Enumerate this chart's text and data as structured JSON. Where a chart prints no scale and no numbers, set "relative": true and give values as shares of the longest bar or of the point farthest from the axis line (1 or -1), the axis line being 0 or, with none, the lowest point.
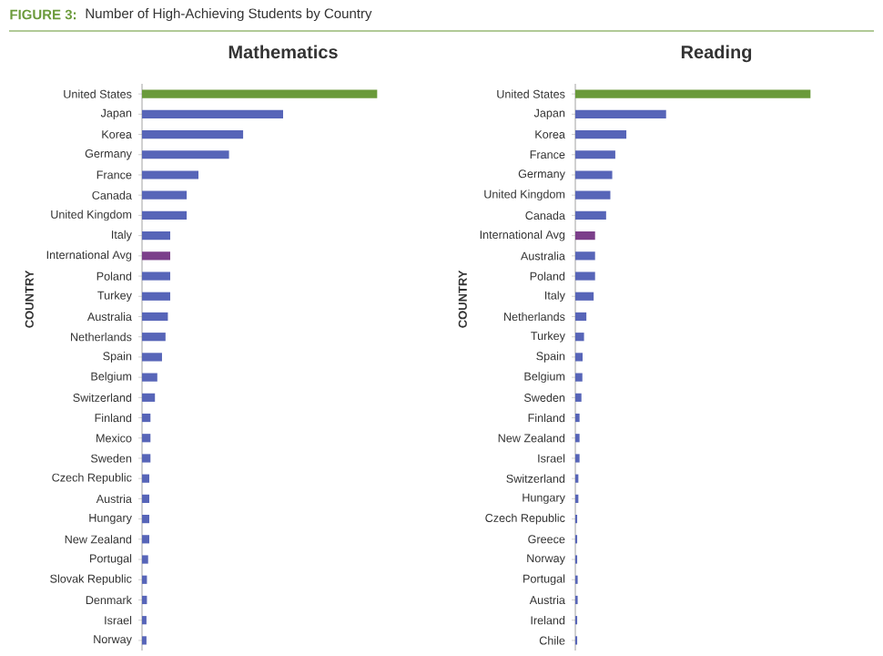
{
  "chart_data": [
    {
      "type": "bar",
      "orientation": "horizontal",
      "relative": true,
      "title": "Mathematics",
      "ylabel": "COUNTRY",
      "annotations": [
        "FIGURE 3:",
        "Number of High-Achieving Students by Country"
      ],
      "categories": [
        "United States",
        "Japan",
        "Korea",
        "Germany",
        "France",
        "Canada",
        "United Kingdom",
        "Italy",
        "International Avg",
        "Poland",
        "Turkey",
        "Australia",
        "Netherlands",
        "Spain",
        "Belgium",
        "Switzerland",
        "Finland",
        "Mexico",
        "Sweden",
        "Czech Republic",
        "Austria",
        "Hungary",
        "New Zealand",
        "Portugal",
        "Slovak Republic",
        "Denmark",
        "Israel",
        "Norway"
      ],
      "values": [
        1,
        0.6,
        0.43,
        0.37,
        0.24,
        0.19,
        0.19,
        0.12,
        0.12,
        0.12,
        0.12,
        0.11,
        0.1,
        0.085,
        0.065,
        0.055,
        0.036,
        0.036,
        0.036,
        0.031,
        0.031,
        0.031,
        0.031,
        0.026,
        0.021,
        0.021,
        0.019,
        0.019
      ],
      "colors": [
        "#6a9a3a",
        "#5765b8",
        "#5765b8",
        "#5765b8",
        "#5765b8",
        "#5765b8",
        "#5765b8",
        "#5765b8",
        "#7b3f8a",
        "#5765b8",
        "#5765b8",
        "#5765b8",
        "#5765b8",
        "#5765b8",
        "#5765b8",
        "#5765b8",
        "#5765b8",
        "#5765b8",
        "#5765b8",
        "#5765b8",
        "#5765b8",
        "#5765b8",
        "#5765b8",
        "#5765b8",
        "#5765b8",
        "#5765b8",
        "#5765b8",
        "#5765b8"
      ]
    },
    {
      "type": "bar",
      "orientation": "horizontal",
      "relative": true,
      "title": "Reading",
      "ylabel": "COUNTRY",
      "categories": [
        "United States",
        "Japan",
        "Korea",
        "France",
        "Germany",
        "United Kingdom",
        "Canada",
        "International Avg",
        "Australia",
        "Poland",
        "Italy",
        "Netherlands",
        "Turkey",
        "Spain",
        "Belgium",
        "Sweden",
        "Finland",
        "New Zealand",
        "Israel",
        "Switzerland",
        "Hungary",
        "Czech Republic",
        "Greece",
        "Norway",
        "Portugal",
        "Austria",
        "Ireland",
        "Chile"
      ],
      "values": [
        1,
        0.386,
        0.217,
        0.17,
        0.157,
        0.149,
        0.131,
        0.084,
        0.084,
        0.084,
        0.078,
        0.047,
        0.037,
        0.031,
        0.03,
        0.026,
        0.018,
        0.018,
        0.018,
        0.013,
        0.013,
        0.008,
        0.008,
        0.008,
        0.01,
        0.01,
        0.008,
        0.008
      ],
      "colors": [
        "#6a9a3a",
        "#5765b8",
        "#5765b8",
        "#5765b8",
        "#5765b8",
        "#5765b8",
        "#5765b8",
        "#7b3f8a",
        "#5765b8",
        "#5765b8",
        "#5765b8",
        "#5765b8",
        "#5765b8",
        "#5765b8",
        "#5765b8",
        "#5765b8",
        "#5765b8",
        "#5765b8",
        "#5765b8",
        "#5765b8",
        "#5765b8",
        "#5765b8",
        "#5765b8",
        "#5765b8",
        "#5765b8",
        "#5765b8",
        "#5765b8",
        "#5765b8"
      ]
    }
  ]
}
